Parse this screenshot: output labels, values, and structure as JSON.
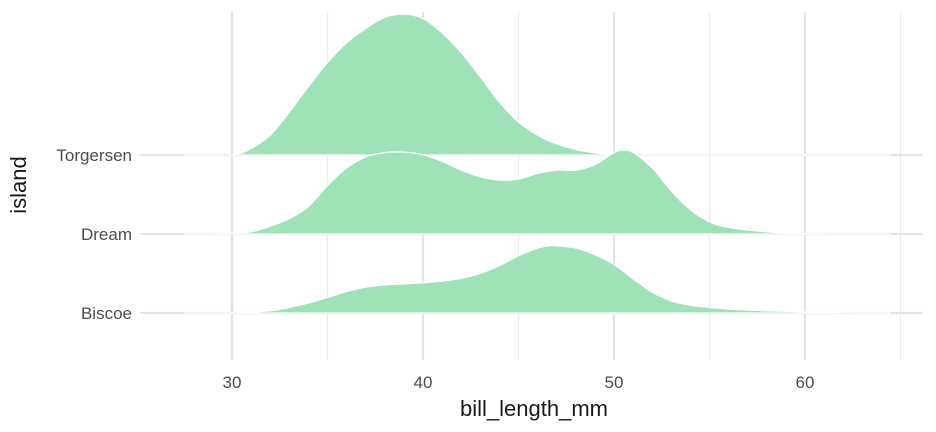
{
  "chart_data": {
    "type": "ridgeline",
    "xlabel": "bill_length_mm",
    "ylabel": "island",
    "xlim": [
      25,
      66
    ],
    "x_ticks": [
      30,
      40,
      50,
      60
    ],
    "x_minor_ticks": [
      35,
      45,
      55,
      65
    ],
    "grid": true,
    "fill_color": "#9fe2b7",
    "outline_color": "#ffffff",
    "series": [
      {
        "name": "Biscoe",
        "range": [
          27.5,
          64.5
        ],
        "density": [
          [
            27.5,
            0
          ],
          [
            30,
            0.001
          ],
          [
            32,
            0.02
          ],
          [
            33,
            0.05
          ],
          [
            34,
            0.09
          ],
          [
            35,
            0.14
          ],
          [
            36,
            0.195
          ],
          [
            37,
            0.235
          ],
          [
            38,
            0.255
          ],
          [
            39,
            0.265
          ],
          [
            40,
            0.275
          ],
          [
            41,
            0.29
          ],
          [
            42,
            0.315
          ],
          [
            43,
            0.36
          ],
          [
            44,
            0.43
          ],
          [
            45,
            0.52
          ],
          [
            46,
            0.59
          ],
          [
            46.5,
            0.61
          ],
          [
            47,
            0.61
          ],
          [
            48,
            0.59
          ],
          [
            49,
            0.53
          ],
          [
            50,
            0.44
          ],
          [
            51,
            0.31
          ],
          [
            52,
            0.19
          ],
          [
            53,
            0.11
          ],
          [
            54,
            0.07
          ],
          [
            55,
            0.05
          ],
          [
            56,
            0.035
          ],
          [
            58,
            0.02
          ],
          [
            60,
            0.01
          ],
          [
            62,
            0.003
          ],
          [
            64.5,
            0
          ]
        ]
      },
      {
        "name": "Dream",
        "range": [
          27.5,
          64.5
        ],
        "density": [
          [
            27.5,
            0
          ],
          [
            30,
            0.005
          ],
          [
            31,
            0.02
          ],
          [
            32,
            0.07
          ],
          [
            33,
            0.14
          ],
          [
            34,
            0.25
          ],
          [
            35,
            0.44
          ],
          [
            36,
            0.6
          ],
          [
            37,
            0.7
          ],
          [
            38,
            0.74
          ],
          [
            39,
            0.745
          ],
          [
            40,
            0.72
          ],
          [
            41,
            0.66
          ],
          [
            42,
            0.58
          ],
          [
            43,
            0.52
          ],
          [
            44,
            0.49
          ],
          [
            45,
            0.5
          ],
          [
            46,
            0.55
          ],
          [
            47,
            0.58
          ],
          [
            48,
            0.58
          ],
          [
            49,
            0.63
          ],
          [
            50,
            0.74
          ],
          [
            50.5,
            0.76
          ],
          [
            51,
            0.74
          ],
          [
            52,
            0.6
          ],
          [
            53,
            0.39
          ],
          [
            54,
            0.22
          ],
          [
            55,
            0.11
          ],
          [
            56,
            0.06
          ],
          [
            58,
            0.02
          ],
          [
            60,
            0.004
          ],
          [
            64.5,
            0
          ]
        ]
      },
      {
        "name": "Torgersen",
        "range": [
          27.5,
          64.5
        ],
        "density": [
          [
            27.5,
            0
          ],
          [
            30,
            0.002
          ],
          [
            31,
            0.06
          ],
          [
            32,
            0.18
          ],
          [
            33,
            0.39
          ],
          [
            34,
            0.62
          ],
          [
            35,
            0.84
          ],
          [
            36,
            1.02
          ],
          [
            37,
            1.15
          ],
          [
            38,
            1.25
          ],
          [
            39,
            1.28
          ],
          [
            40,
            1.24
          ],
          [
            41,
            1.11
          ],
          [
            42,
            0.93
          ],
          [
            43,
            0.71
          ],
          [
            44,
            0.48
          ],
          [
            45,
            0.3
          ],
          [
            46,
            0.18
          ],
          [
            47,
            0.1
          ],
          [
            48,
            0.05
          ],
          [
            49,
            0.02
          ],
          [
            50,
            0.005
          ],
          [
            51,
            0.001
          ],
          [
            64.5,
            0
          ]
        ]
      }
    ]
  }
}
